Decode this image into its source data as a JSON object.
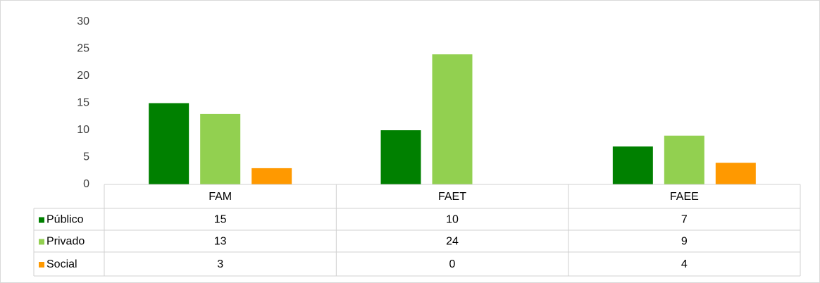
{
  "chart_data": {
    "type": "bar",
    "categories": [
      "FAM",
      "FAET",
      "FAEE"
    ],
    "series": [
      {
        "name": "Público",
        "color": "#008000",
        "values": [
          15,
          10,
          7
        ]
      },
      {
        "name": "Privado",
        "color": "#92d050",
        "values": [
          13,
          24,
          9
        ]
      },
      {
        "name": "Social",
        "color": "#ff9900",
        "values": [
          3,
          0,
          4
        ]
      }
    ],
    "ylim": [
      0,
      30
    ],
    "yticks": [
      0,
      5,
      10,
      15,
      20,
      25,
      30
    ],
    "grid": false,
    "data_table": true
  }
}
